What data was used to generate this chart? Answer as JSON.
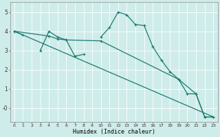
{
  "xlabel": "Humidex (Indice chaleur)",
  "xlim": [
    -0.5,
    23.5
  ],
  "ylim": [
    -0.7,
    5.5
  ],
  "yticks": [
    0,
    1,
    2,
    3,
    4,
    5
  ],
  "ytick_labels": [
    "-0",
    "1",
    "2",
    "3",
    "4",
    "5"
  ],
  "xticks": [
    0,
    1,
    2,
    3,
    4,
    5,
    6,
    7,
    8,
    9,
    10,
    11,
    12,
    13,
    14,
    15,
    16,
    17,
    18,
    19,
    20,
    21,
    22,
    23
  ],
  "bg_color": "#ceecea",
  "grid_color": "#ffffff",
  "line_color": "#1a7a6e",
  "line1_segments": [
    [
      [
        0,
        4.0
      ],
      [
        1,
        3.8
      ]
    ],
    [
      [
        3,
        3.0
      ],
      [
        4,
        4.0
      ],
      [
        5,
        3.7
      ],
      [
        6,
        3.55
      ],
      [
        7,
        2.7
      ],
      [
        8,
        2.8
      ]
    ],
    [
      [
        10,
        3.7
      ],
      [
        11,
        4.2
      ],
      [
        12,
        5.0
      ],
      [
        13,
        4.85
      ],
      [
        14,
        4.35
      ],
      [
        15,
        4.3
      ],
      [
        16,
        3.2
      ],
      [
        17,
        2.5
      ],
      [
        18,
        1.9
      ],
      [
        19,
        1.5
      ],
      [
        20,
        0.75
      ],
      [
        21,
        0.75
      ],
      [
        22,
        -0.45
      ],
      [
        23,
        -0.45
      ]
    ]
  ],
  "line2_x": [
    0,
    4,
    5,
    6,
    10,
    19,
    21,
    22,
    23
  ],
  "line2_y": [
    4.0,
    3.75,
    3.6,
    3.55,
    3.5,
    1.5,
    0.75,
    -0.45,
    -0.45
  ],
  "line3_x": [
    0,
    23
  ],
  "line3_y": [
    4.0,
    -0.45
  ]
}
